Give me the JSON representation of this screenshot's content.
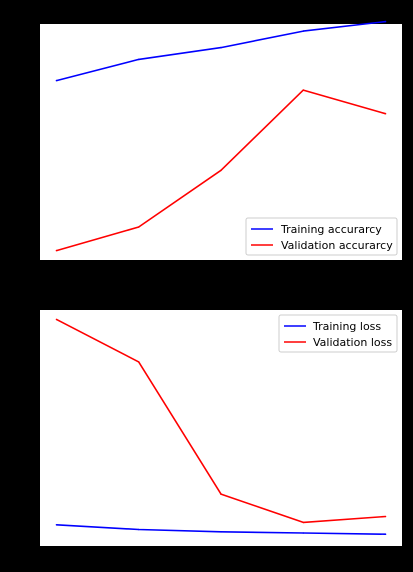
{
  "chart_data": [
    {
      "type": "line",
      "title": "",
      "xlabel": "",
      "ylabel": "",
      "x": [
        1,
        2,
        3,
        4,
        5
      ],
      "xlim": [
        0.8,
        5.2
      ],
      "ylim": [
        0,
        1
      ],
      "grid": false,
      "legend_position": "lower-right",
      "series": [
        {
          "name": "Training accurarcy",
          "color": "#0000ff",
          "values": [
            0.76,
            0.85,
            0.9,
            0.97,
            1.01
          ]
        },
        {
          "name": "Validation accurarcy",
          "color": "#ff0000",
          "values": [
            0.04,
            0.14,
            0.38,
            0.72,
            0.62
          ]
        }
      ]
    },
    {
      "type": "line",
      "title": "",
      "xlabel": "",
      "ylabel": "",
      "x": [
        1,
        2,
        3,
        4,
        5
      ],
      "xlim": [
        0.8,
        5.2
      ],
      "ylim": [
        0,
        1
      ],
      "grid": false,
      "legend_position": "upper-right",
      "series": [
        {
          "name": "Training loss",
          "color": "#0000ff",
          "values": [
            0.09,
            0.07,
            0.06,
            0.055,
            0.05
          ]
        },
        {
          "name": "Validation loss",
          "color": "#ff0000",
          "values": [
            0.96,
            0.78,
            0.22,
            0.1,
            0.125
          ]
        }
      ]
    }
  ]
}
